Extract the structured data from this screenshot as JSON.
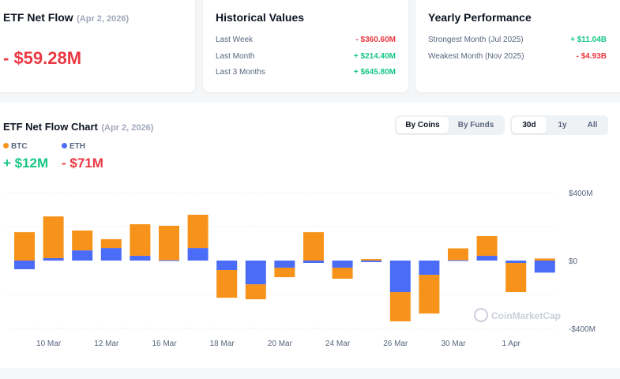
{
  "net_flow": {
    "title": "ETF Net Flow",
    "date": "(Apr 2, 2026)",
    "value": "- $59.28M"
  },
  "historical": {
    "title": "Historical Values",
    "rows": [
      {
        "label": "Last Week",
        "value": "- $360.60M",
        "sign": "neg"
      },
      {
        "label": "Last Month",
        "value": "+ $214.40M",
        "sign": "pos"
      },
      {
        "label": "Last 3 Months",
        "value": "+ $645.80M",
        "sign": "pos"
      }
    ]
  },
  "yearly": {
    "title": "Yearly Performance",
    "rows": [
      {
        "label": "Strongest Month (Jul 2025)",
        "value": "+ $11.04B",
        "sign": "pos"
      },
      {
        "label": "Weakest Month (Nov 2025)",
        "value": "- $4.93B",
        "sign": "neg"
      }
    ]
  },
  "chart_panel": {
    "title": "ETF Net Flow Chart",
    "date": "(Apr 2, 2026)",
    "group_tabs": [
      "By Coins",
      "By Funds"
    ],
    "range_tabs": [
      "30d",
      "1y",
      "All"
    ],
    "legend": [
      {
        "name": "BTC",
        "value": "+ $12M",
        "sign": "pos"
      },
      {
        "name": "ETH",
        "value": "- $71M",
        "sign": "neg"
      }
    ],
    "watermark": "CoinMarketCap"
  },
  "colors": {
    "btc": "#f7931a",
    "eth": "#4a6cf7",
    "pos": "#16c784",
    "neg": "#ea3943"
  },
  "chart_data": {
    "type": "bar",
    "stacked": true,
    "dates": [
      "9 Mar",
      "10 Mar",
      "11 Mar",
      "12 Mar",
      "13 Mar",
      "16 Mar",
      "17 Mar",
      "18 Mar",
      "19 Mar",
      "20 Mar",
      "23 Mar",
      "24 Mar",
      "25 Mar",
      "26 Mar",
      "27 Mar",
      "30 Mar",
      "31 Mar",
      "1 Apr",
      "2 Apr"
    ],
    "x_tick_labels": [
      "10 Mar",
      "12 Mar",
      "16 Mar",
      "18 Mar",
      "20 Mar",
      "24 Mar",
      "26 Mar",
      "30 Mar",
      "1 Apr"
    ],
    "series": [
      {
        "name": "ETH",
        "values": [
          -51,
          14,
          60,
          74,
          28,
          2,
          74,
          -56,
          -140,
          -42,
          -14,
          -42,
          -9,
          -186,
          -84,
          2,
          28,
          -14,
          -71
        ]
      },
      {
        "name": "BTC",
        "values": [
          167,
          246,
          117,
          52,
          186,
          203,
          196,
          -163,
          -88,
          -56,
          167,
          -65,
          9,
          -172,
          -228,
          70,
          116,
          -172,
          12
        ]
      }
    ],
    "y_ticks": [
      "$400M",
      "$0",
      "-$400M"
    ],
    "y_tick_values": [
      400,
      0,
      -400
    ],
    "ylim": [
      -400,
      400
    ],
    "unit": "USD millions",
    "grid": true,
    "legend": "top-left"
  }
}
